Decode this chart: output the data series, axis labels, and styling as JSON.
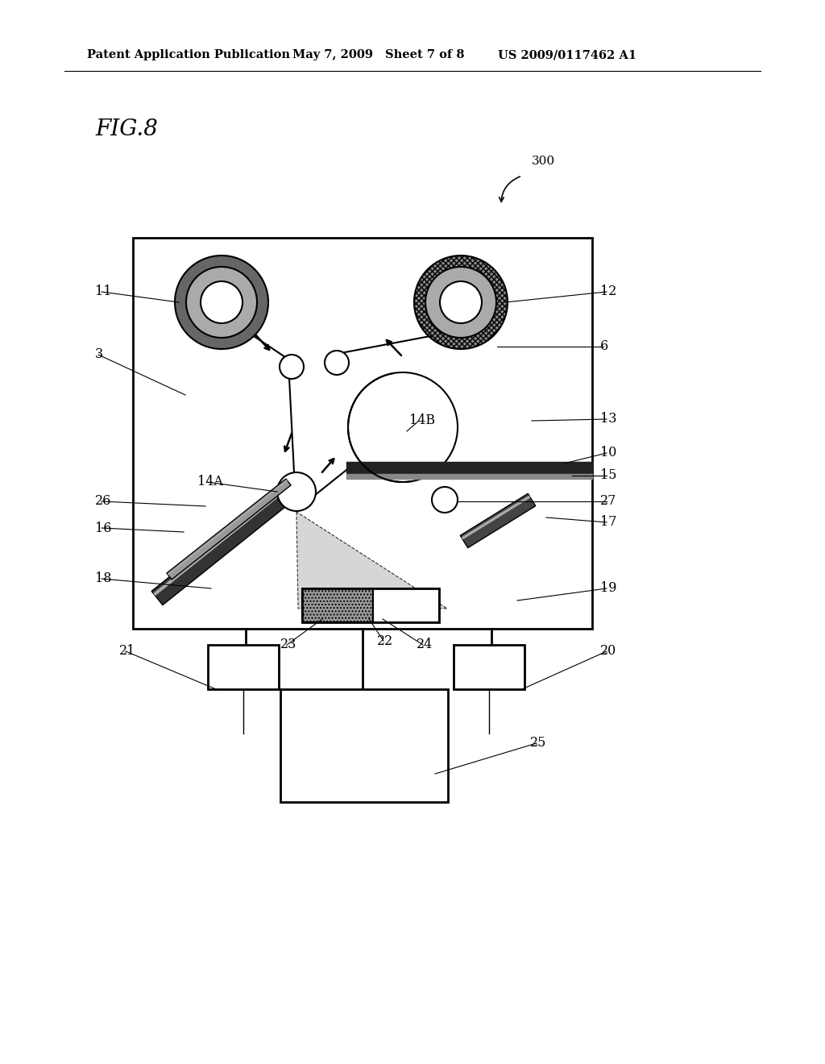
{
  "header_left": "Patent Application Publication",
  "header_mid": "May 7, 2009   Sheet 7 of 8",
  "header_right": "US 2009/0117462 A1",
  "fig_label": "FIG.8",
  "bg_color": "#ffffff"
}
